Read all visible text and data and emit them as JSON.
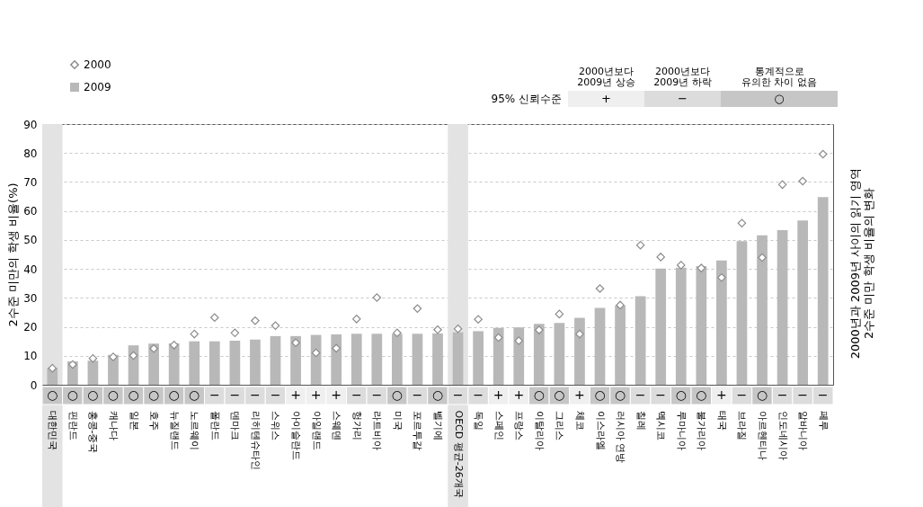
{
  "chart_data": {
    "type": "bar",
    "ylabel": "2수준 미만의 학생 비율(%)",
    "categories": [
      "대한민국",
      "핀란드",
      "홍콩-중국",
      "캐나다",
      "일본",
      "호주",
      "뉴질랜드",
      "노르웨이",
      "폴란드",
      "덴마크",
      "리히텐슈타인",
      "스위스",
      "아이슬란드",
      "아일랜드",
      "스웨덴",
      "헝가리",
      "라트비아",
      "미국",
      "포르투갈",
      "벨기에",
      "OECD 평균-26개국",
      "독일",
      "스페인",
      "프랑스",
      "이탈리아",
      "그리스",
      "체코",
      "이스라엘",
      "러시아 연방",
      "칠레",
      "멕시코",
      "루마니아",
      "불가리아",
      "태국",
      "브라질",
      "아르헨티나",
      "인도네시아",
      "알바니아",
      "페루"
    ],
    "series": [
      {
        "name": "2009",
        "color": "#b8b8b8",
        "values": [
          5.8,
          8.1,
          8.3,
          10.3,
          13.6,
          14.2,
          14.3,
          15.0,
          15.0,
          15.2,
          15.6,
          16.8,
          16.8,
          17.2,
          17.4,
          17.6,
          17.6,
          17.6,
          17.6,
          17.7,
          18.1,
          18.5,
          19.6,
          19.8,
          21.0,
          21.3,
          23.1,
          26.5,
          27.4,
          30.6,
          40.1,
          40.4,
          41.0,
          42.9,
          49.6,
          51.6,
          53.4,
          56.7,
          64.8
        ]
      },
      {
        "name": "2000",
        "type": "scatter",
        "marker": "diamond",
        "color": "#8c8c8c",
        "values": [
          5.7,
          7.0,
          9.1,
          9.6,
          10.1,
          12.5,
          13.7,
          17.5,
          23.2,
          17.9,
          22.1,
          20.4,
          14.5,
          11.0,
          12.6,
          22.7,
          30.1,
          17.9,
          26.3,
          19.0,
          19.3,
          22.6,
          16.3,
          15.2,
          18.9,
          24.4,
          17.5,
          33.2,
          27.5,
          48.2,
          44.1,
          41.3,
          40.3,
          37.0,
          55.8,
          43.9,
          69.1,
          70.3,
          79.6
        ]
      }
    ],
    "ylim": [
      0,
      90
    ],
    "yticks": [
      0,
      10,
      20,
      30,
      40,
      50,
      60,
      70,
      80,
      90
    ],
    "grid": "y",
    "legend": "top left",
    "bands": [
      {
        "axis": "x",
        "from": "대한민국",
        "to": "대한민국",
        "color": "#e3e3e3"
      },
      {
        "axis": "x",
        "from": "OECD 평균-26개국",
        "to": "OECD 평균-26개국",
        "color": "#e3e3e3"
      }
    ],
    "annotations": [
      "95% 신뢰수준",
      "2000년보다\n2009년 상승",
      "2000년보다\n2009년 하락",
      "통계적으로\n유의한 차이 없음",
      "+",
      "−",
      "○",
      "2000년과 2009년 사이의 읽기 영역\n2수준 미만 학생 비율의 변화",
      {
        "text": "○",
        "x": "대한민국"
      },
      {
        "text": "○",
        "x": "핀란드"
      },
      {
        "text": "○",
        "x": "홍콩-중국"
      },
      {
        "text": "○",
        "x": "캐나다"
      },
      {
        "text": "○",
        "x": "일본"
      },
      {
        "text": "○",
        "x": "호주"
      },
      {
        "text": "○",
        "x": "뉴질랜드"
      },
      {
        "text": "○",
        "x": "노르웨이"
      },
      {
        "text": "−",
        "x": "폴란드"
      },
      {
        "text": "−",
        "x": "덴마크"
      },
      {
        "text": "−",
        "x": "리히텐슈타인"
      },
      {
        "text": "−",
        "x": "스위스"
      },
      {
        "text": "+",
        "x": "아이슬란드"
      },
      {
        "text": "+",
        "x": "아일랜드"
      },
      {
        "text": "+",
        "x": "스웨덴"
      },
      {
        "text": "−",
        "x": "헝가리"
      },
      {
        "text": "−",
        "x": "라트비아"
      },
      {
        "text": "○",
        "x": "미국"
      },
      {
        "text": "−",
        "x": "포르투갈"
      },
      {
        "text": "○",
        "x": "벨기에"
      },
      {
        "text": "−",
        "x": "OECD 평균-26개국"
      },
      {
        "text": "−",
        "x": "독일"
      },
      {
        "text": "+",
        "x": "스페인"
      },
      {
        "text": "+",
        "x": "프랑스"
      },
      {
        "text": "○",
        "x": "이탈리아"
      },
      {
        "text": "○",
        "x": "그리스"
      },
      {
        "text": "+",
        "x": "체코"
      },
      {
        "text": "○",
        "x": "이스라엘"
      },
      {
        "text": "○",
        "x": "러시아 연방"
      },
      {
        "text": "−",
        "x": "칠레"
      },
      {
        "text": "−",
        "x": "멕시코"
      },
      {
        "text": "○",
        "x": "루마니아"
      },
      {
        "text": "○",
        "x": "불가리아"
      },
      {
        "text": "+",
        "x": "태국"
      },
      {
        "text": "−",
        "x": "브라질"
      },
      {
        "text": "○",
        "x": "아르헨티나"
      },
      {
        "text": "−",
        "x": "인도네시아"
      },
      {
        "text": "−",
        "x": "알바니아"
      },
      {
        "text": "−",
        "x": "페루"
      }
    ]
  }
}
